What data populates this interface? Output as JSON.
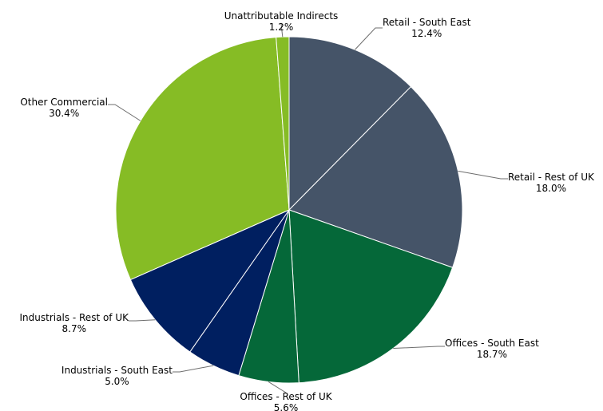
{
  "chart_data": {
    "type": "pie",
    "title": "",
    "slices": [
      {
        "name": "Retail - South East",
        "value": 12.4,
        "display": "12.4%",
        "color": "#455468"
      },
      {
        "name": "Retail - Rest of UK",
        "value": 18.0,
        "display": "18.0%",
        "color": "#455468"
      },
      {
        "name": "Offices - South East",
        "value": 18.7,
        "display": "18.7%",
        "color": "#056839"
      },
      {
        "name": "Offices - Rest of UK",
        "value": 5.6,
        "display": "5.6%",
        "color": "#056839"
      },
      {
        "name": "Industrials - South East",
        "value": 5.0,
        "display": "5.0%",
        "color": "#001f60"
      },
      {
        "name": "Industrials - Rest of UK",
        "value": 8.7,
        "display": "8.7%",
        "color": "#001f60"
      },
      {
        "name": "Other Commercial",
        "value": 30.4,
        "display": "30.4%",
        "color": "#86bc25"
      },
      {
        "name": "Unattributable Indirects",
        "value": 1.2,
        "display": "1.2%",
        "color": "#86bc25"
      }
    ],
    "start_angle": "12 o'clock",
    "direction": "clockwise",
    "legend": "none"
  }
}
